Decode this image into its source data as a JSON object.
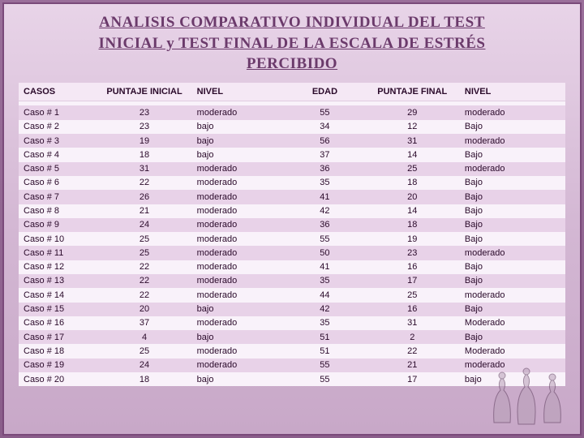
{
  "title_lines": [
    "ANALISIS COMPARATIVO INDIVIDUAL  DEL  TEST",
    "INICIAL y TEST FINAL  DE LA ESCALA DE ESTRÉS",
    "PERCIBIDO"
  ],
  "table": {
    "columns": [
      "CASOS",
      "PUNTAJE INICIAL",
      "NIVEL",
      "EDAD",
      "PUNTAJE FINAL",
      "NIVEL"
    ],
    "rows": [
      [
        "Caso # 1",
        "23",
        "moderado",
        "55",
        "29",
        "moderado"
      ],
      [
        "Caso # 2",
        "23",
        "bajo",
        "34",
        "12",
        "Bajo"
      ],
      [
        "Caso # 3",
        "19",
        "bajo",
        "56",
        "31",
        "moderado"
      ],
      [
        "Caso # 4",
        "18",
        "bajo",
        "37",
        "14",
        "Bajo"
      ],
      [
        "Caso # 5",
        "31",
        "moderado",
        "36",
        "25",
        "moderado"
      ],
      [
        "Caso # 6",
        "22",
        "moderado",
        "35",
        "18",
        "Bajo"
      ],
      [
        "Caso # 7",
        "26",
        "moderado",
        "41",
        "20",
        "Bajo"
      ],
      [
        "Caso # 8",
        "21",
        "moderado",
        "42",
        "14",
        "Bajo"
      ],
      [
        "Caso # 9",
        "24",
        "moderado",
        "36",
        "18",
        "Bajo"
      ],
      [
        "Caso # 10",
        "25",
        "moderado",
        "55",
        "19",
        "Bajo"
      ],
      [
        "Caso # 11",
        "25",
        "moderado",
        "50",
        "23",
        "moderado"
      ],
      [
        "Caso # 12",
        "22",
        "moderado",
        "41",
        "16",
        "Bajo"
      ],
      [
        "Caso # 13",
        "22",
        "moderado",
        "35",
        "17",
        "Bajo"
      ],
      [
        "Caso # 14",
        "22",
        "moderado",
        "44",
        "25",
        "moderado"
      ],
      [
        "Caso # 15",
        "20",
        "bajo",
        "42",
        "16",
        "Bajo"
      ],
      [
        "Caso # 16",
        "37",
        "moderado",
        "35",
        "31",
        "Moderado"
      ],
      [
        "Caso # 17",
        "4",
        "bajo",
        "51",
        "2",
        "Bajo"
      ],
      [
        "Caso # 18",
        "25",
        "moderado",
        "51",
        "22",
        "Moderado"
      ],
      [
        "Caso # 19",
        "24",
        "moderado",
        "55",
        "21",
        "moderado"
      ],
      [
        "Caso # 20",
        "18",
        "bajo",
        "55",
        "17",
        "bajo"
      ]
    ]
  },
  "colors": {
    "frame_border": "#7a4a7a",
    "title_color": "#6b3a6b",
    "row_even": "#f9f2fa",
    "row_odd": "#e8d2e8",
    "header_bg": "#f5e8f5"
  }
}
